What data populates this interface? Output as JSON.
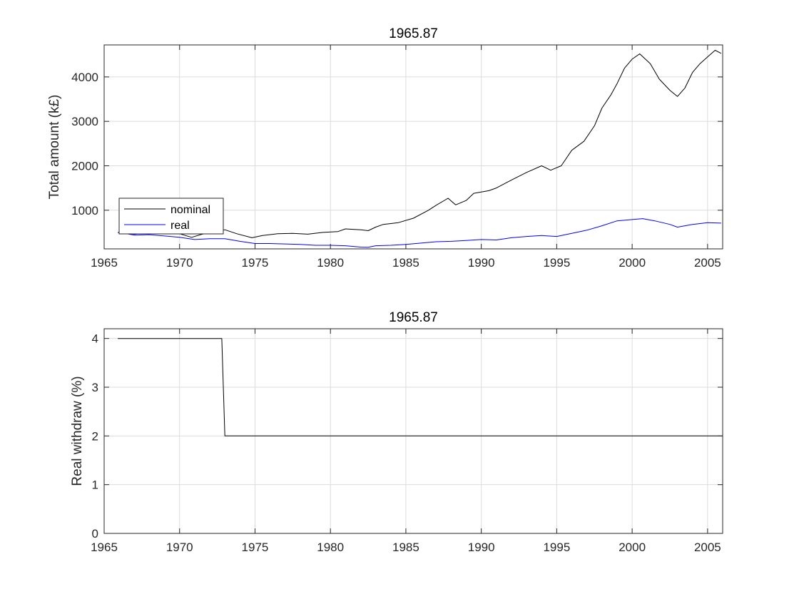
{
  "chart_data": [
    {
      "type": "line",
      "title": "1965.87",
      "xlabel": "",
      "ylabel": "Total amount (k£)",
      "xlim": [
        1965,
        2006
      ],
      "ylim": [
        130,
        4720
      ],
      "xticks": [
        1965,
        1970,
        1975,
        1980,
        1985,
        1990,
        1995,
        2000,
        2005
      ],
      "yticks": [
        1000,
        2000,
        3000,
        4000
      ],
      "grid": true,
      "legend": {
        "placement": "bottom-left"
      },
      "series": [
        {
          "name": "nominal",
          "color": "#000000",
          "points": [
            [
              1965.9,
              500
            ],
            [
              1966.5,
              480
            ],
            [
              1967.0,
              460
            ],
            [
              1968.0,
              490
            ],
            [
              1969.0,
              470
            ],
            [
              1970.0,
              470
            ],
            [
              1970.8,
              390
            ],
            [
              1971.5,
              460
            ],
            [
              1972.5,
              520
            ],
            [
              1973.0,
              560
            ],
            [
              1973.8,
              470
            ],
            [
              1974.8,
              380
            ],
            [
              1975.5,
              430
            ],
            [
              1976.5,
              470
            ],
            [
              1977.5,
              480
            ],
            [
              1978.5,
              460
            ],
            [
              1979.5,
              500
            ],
            [
              1980.5,
              520
            ],
            [
              1981.0,
              580
            ],
            [
              1982.0,
              560
            ],
            [
              1982.5,
              540
            ],
            [
              1983.0,
              620
            ],
            [
              1983.5,
              680
            ],
            [
              1984.5,
              720
            ],
            [
              1985.5,
              820
            ],
            [
              1986.5,
              1000
            ],
            [
              1987.0,
              1110
            ],
            [
              1987.8,
              1270
            ],
            [
              1988.3,
              1120
            ],
            [
              1989.0,
              1220
            ],
            [
              1989.5,
              1380
            ],
            [
              1990.5,
              1440
            ],
            [
              1991.0,
              1500
            ],
            [
              1992.0,
              1680
            ],
            [
              1993.0,
              1850
            ],
            [
              1994.0,
              2000
            ],
            [
              1994.6,
              1900
            ],
            [
              1995.3,
              2000
            ],
            [
              1996.0,
              2350
            ],
            [
              1996.8,
              2550
            ],
            [
              1997.5,
              2900
            ],
            [
              1998.0,
              3300
            ],
            [
              1998.6,
              3600
            ],
            [
              1999.0,
              3850
            ],
            [
              1999.5,
              4200
            ],
            [
              2000.0,
              4400
            ],
            [
              2000.5,
              4520
            ],
            [
              2001.2,
              4300
            ],
            [
              2001.8,
              3950
            ],
            [
              2002.5,
              3700
            ],
            [
              2003.0,
              3560
            ],
            [
              2003.5,
              3750
            ],
            [
              2004.0,
              4100
            ],
            [
              2004.5,
              4300
            ],
            [
              2005.0,
              4450
            ],
            [
              2005.5,
              4600
            ],
            [
              2005.9,
              4530
            ]
          ]
        },
        {
          "name": "real",
          "color": "#0000ff",
          "points": [
            [
              1965.9,
              500
            ],
            [
              1966.5,
              470
            ],
            [
              1967.0,
              440
            ],
            [
              1968.0,
              450
            ],
            [
              1969.0,
              420
            ],
            [
              1970.0,
              390
            ],
            [
              1971.0,
              340
            ],
            [
              1972.0,
              360
            ],
            [
              1973.0,
              360
            ],
            [
              1974.0,
              300
            ],
            [
              1975.0,
              250
            ],
            [
              1976.0,
              250
            ],
            [
              1977.0,
              240
            ],
            [
              1978.0,
              230
            ],
            [
              1979.0,
              210
            ],
            [
              1980.0,
              210
            ],
            [
              1981.0,
              200
            ],
            [
              1982.0,
              170
            ],
            [
              1982.5,
              165
            ],
            [
              1983.0,
              200
            ],
            [
              1984.0,
              210
            ],
            [
              1985.0,
              230
            ],
            [
              1986.0,
              260
            ],
            [
              1987.0,
              290
            ],
            [
              1988.0,
              300
            ],
            [
              1989.0,
              320
            ],
            [
              1990.0,
              340
            ],
            [
              1991.0,
              330
            ],
            [
              1992.0,
              380
            ],
            [
              1993.0,
              410
            ],
            [
              1994.0,
              430
            ],
            [
              1995.0,
              410
            ],
            [
              1996.0,
              480
            ],
            [
              1997.0,
              550
            ],
            [
              1998.0,
              650
            ],
            [
              1999.0,
              760
            ],
            [
              2000.0,
              790
            ],
            [
              2000.7,
              810
            ],
            [
              2001.5,
              760
            ],
            [
              2002.5,
              680
            ],
            [
              2003.0,
              620
            ],
            [
              2003.5,
              650
            ],
            [
              2004.0,
              680
            ],
            [
              2005.0,
              720
            ],
            [
              2005.9,
              710
            ]
          ]
        }
      ]
    },
    {
      "type": "line",
      "title": "1965.87",
      "xlabel": "",
      "ylabel": "Real withdraw (%)",
      "xlim": [
        1965,
        2006
      ],
      "ylim": [
        0,
        4.2
      ],
      "xticks": [
        1965,
        1970,
        1975,
        1980,
        1985,
        1990,
        1995,
        2000,
        2005
      ],
      "yticks": [
        0,
        1,
        2,
        3,
        4
      ],
      "grid": true,
      "series": [
        {
          "color": "#000000",
          "points": [
            [
              1965.9,
              4
            ],
            [
              1972.8,
              4
            ],
            [
              1973.0,
              2
            ],
            [
              2006.0,
              2
            ]
          ]
        }
      ]
    }
  ]
}
